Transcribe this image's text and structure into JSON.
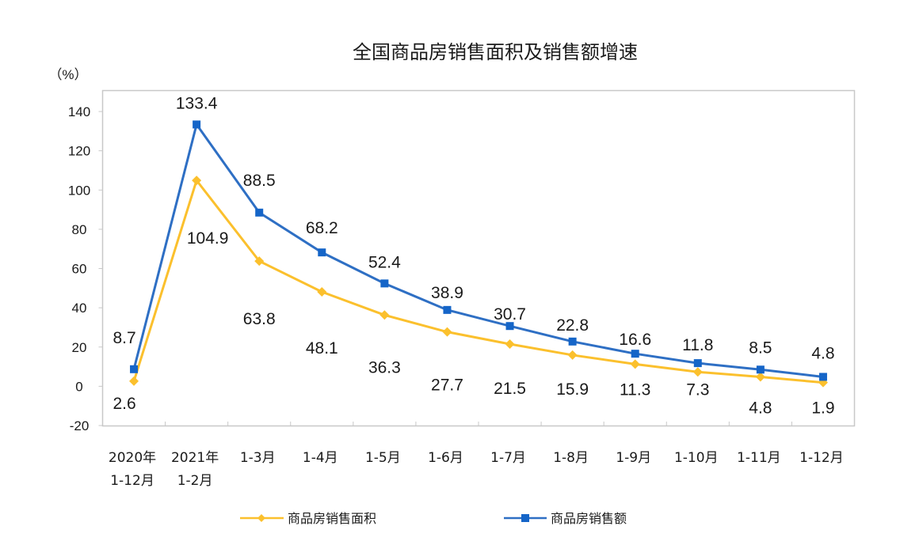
{
  "chart_data": {
    "type": "line",
    "title": "全国商品房销售面积及销售额增速",
    "ylabel": "（%）",
    "ylim": [
      -20,
      140
    ],
    "yticks": [
      "140",
      "120",
      "100",
      "80",
      "60",
      "40",
      "20",
      "0",
      "-20"
    ],
    "categories": [
      [
        "2020年",
        "1-12月"
      ],
      [
        "2021年",
        "1-2月"
      ],
      [
        "1-3月"
      ],
      [
        "1-4月"
      ],
      [
        "1-5月"
      ],
      [
        "1-6月"
      ],
      [
        "1-7月"
      ],
      [
        "1-8月"
      ],
      [
        "1-9月"
      ],
      [
        "1-10月"
      ],
      [
        "1-11月"
      ],
      [
        "1-12月"
      ]
    ],
    "series": [
      {
        "name": "商品房销售面积",
        "color": "#fbc02d",
        "marker": "diamond",
        "values": [
          2.6,
          104.9,
          63.8,
          48.1,
          36.3,
          27.7,
          21.5,
          15.9,
          11.3,
          7.3,
          4.8,
          1.9
        ]
      },
      {
        "name": "商品房销售额",
        "color": "#2e6fc4",
        "marker": "square",
        "values": [
          8.7,
          133.4,
          88.5,
          68.2,
          52.4,
          38.9,
          30.7,
          22.8,
          16.6,
          11.8,
          8.5,
          4.8
        ]
      }
    ],
    "legend": "bottom"
  }
}
